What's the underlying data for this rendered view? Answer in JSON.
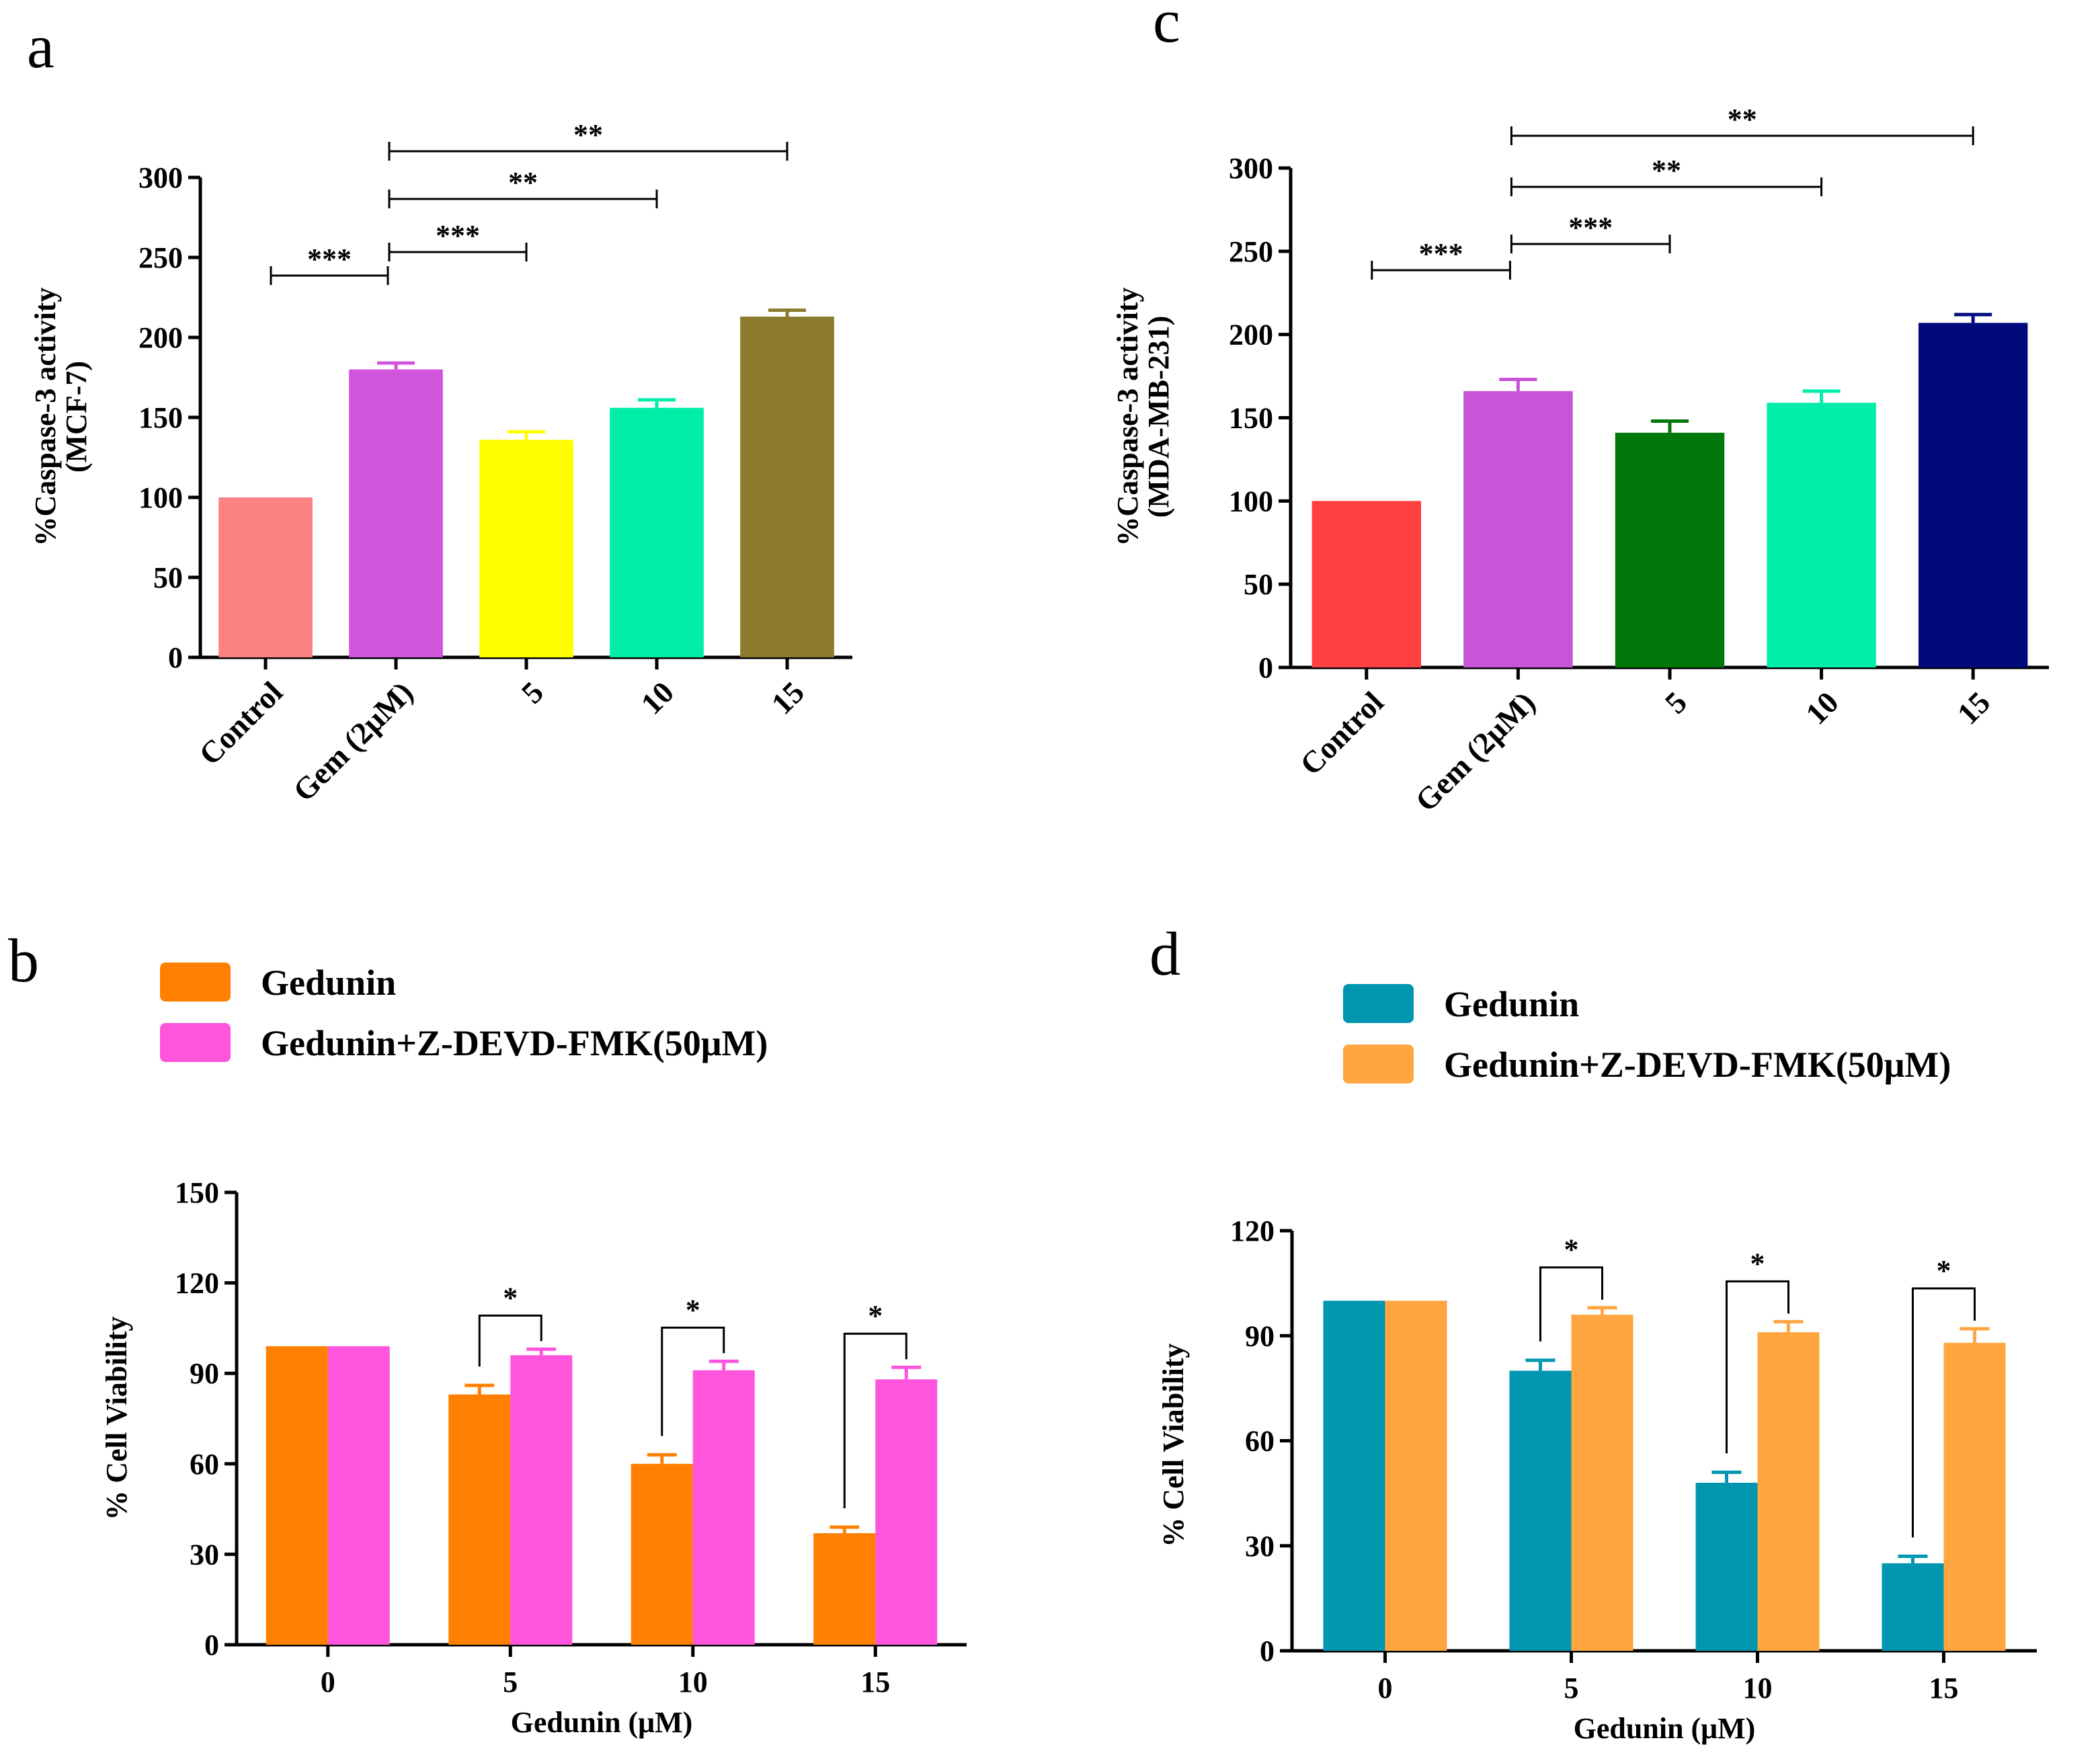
{
  "chart_data": [
    {
      "panel": "a",
      "type": "bar",
      "ylabel": "%Caspase-3 activity",
      "ylabel_sub": "(MCF-7)",
      "xlabel": "",
      "ylim": [
        0,
        300
      ],
      "yticks": [
        0,
        50,
        100,
        150,
        200,
        250,
        300
      ],
      "categories": [
        "Control",
        "Gem (2μM)",
        "5",
        "10",
        "15"
      ],
      "values": [
        100,
        180,
        136,
        156,
        213
      ],
      "errors": [
        0,
        4,
        5,
        5,
        4
      ],
      "colors": [
        "#fb8282",
        "#d055dc",
        "#ffff00",
        "#00eeaa",
        "#8c7a2e"
      ],
      "significance": [
        {
          "from": 0,
          "to": 1,
          "label": "***"
        },
        {
          "from": 1,
          "to": 2,
          "label": "***"
        },
        {
          "from": 1,
          "to": 3,
          "label": "**"
        },
        {
          "from": 1,
          "to": 4,
          "label": "**"
        }
      ]
    },
    {
      "panel": "c",
      "type": "bar",
      "ylabel": "%Caspase-3 activity",
      "ylabel_sub": "(MDA-MB-231)",
      "xlabel": "",
      "ylim": [
        0,
        300
      ],
      "yticks": [
        0,
        50,
        100,
        150,
        200,
        250,
        300
      ],
      "categories": [
        "Control",
        "Gem (2μM)",
        "5",
        "10",
        "15"
      ],
      "values": [
        100,
        166,
        141,
        159,
        207
      ],
      "errors": [
        0,
        7,
        7,
        7,
        5
      ],
      "colors": [
        "#ff4040",
        "#c855d8",
        "#00780a",
        "#00eeaa",
        "#000a7c"
      ],
      "significance": [
        {
          "from": 0,
          "to": 1,
          "label": "***"
        },
        {
          "from": 1,
          "to": 2,
          "label": "***"
        },
        {
          "from": 1,
          "to": 3,
          "label": "**"
        },
        {
          "from": 1,
          "to": 4,
          "label": "**"
        }
      ]
    },
    {
      "panel": "b",
      "type": "bar",
      "ylabel": "% Cell Viability",
      "xlabel": "Gedunin (μM)",
      "ylim": [
        0,
        150
      ],
      "yticks": [
        0,
        30,
        60,
        90,
        120,
        150
      ],
      "categories": [
        "0",
        "5",
        "10",
        "15"
      ],
      "series": [
        {
          "name": "Gedunin",
          "color": "#ff8000",
          "values": [
            99,
            83,
            60,
            37
          ],
          "errors": [
            0,
            3,
            3,
            2
          ]
        },
        {
          "name": "Gedunin+Z-DEVD-FMK(50μM)",
          "color": "#ff55dd",
          "values": [
            99,
            96,
            91,
            88
          ],
          "errors": [
            0,
            2,
            3,
            4
          ]
        }
      ],
      "significance": [
        {
          "category": 1,
          "label": "*"
        },
        {
          "category": 2,
          "label": "*"
        },
        {
          "category": 3,
          "label": "*"
        }
      ]
    },
    {
      "panel": "d",
      "type": "bar",
      "ylabel": "% Cell Viability",
      "xlabel": "Gedunin (μM)",
      "ylim": [
        0,
        120
      ],
      "yticks": [
        0,
        30,
        60,
        90,
        120
      ],
      "categories": [
        "0",
        "5",
        "10",
        "15"
      ],
      "series": [
        {
          "name": "Gedunin",
          "color": "#0096b0",
          "values": [
            100,
            80,
            48,
            25
          ],
          "errors": [
            0,
            3,
            3,
            2
          ]
        },
        {
          "name": "Gedunin+Z-DEVD-FMK(50μM)",
          "color": "#ffa640",
          "values": [
            100,
            96,
            91,
            88
          ],
          "errors": [
            0,
            2,
            3,
            4
          ]
        }
      ],
      "significance": [
        {
          "category": 1,
          "label": "*"
        },
        {
          "category": 2,
          "label": "*"
        },
        {
          "category": 3,
          "label": "*"
        }
      ]
    }
  ]
}
